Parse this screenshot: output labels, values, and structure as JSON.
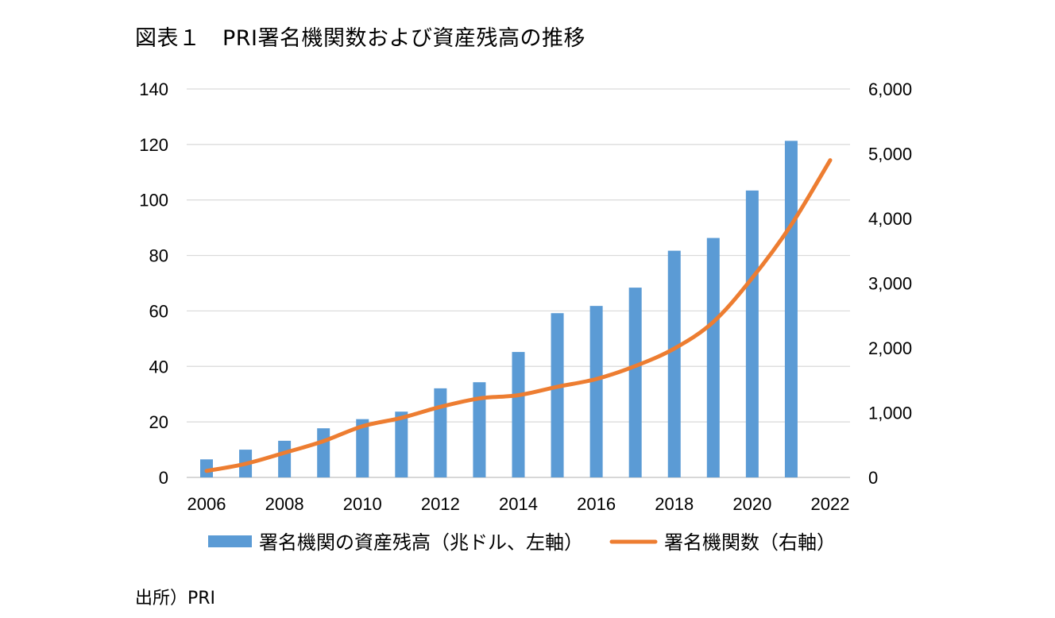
{
  "title": "図表１　PRI署名機関数および資産残高の推移",
  "source": "出所）PRI",
  "chart_data": {
    "type": "bar+line",
    "title": "図表１　PRI署名機関数および資産残高の推移",
    "x_range": [
      2006,
      2022
    ],
    "x_ticks": [
      "2006",
      "2008",
      "2010",
      "2012",
      "2014",
      "2016",
      "2018",
      "2020",
      "2022"
    ],
    "y_left": {
      "range": [
        0,
        140
      ],
      "ticks": [
        "0",
        "20",
        "40",
        "60",
        "80",
        "100",
        "120",
        "140"
      ]
    },
    "y_right": {
      "range": [
        0,
        6000
      ],
      "ticks": [
        "0",
        "1,000",
        "2,000",
        "3,000",
        "4,000",
        "5,000",
        "6,000"
      ]
    },
    "grid": true,
    "legend_position": "bottom",
    "series": [
      {
        "name": "署名機関の資産残高（兆ドル、左軸）",
        "type": "bar",
        "axis": "left",
        "color": "#5b9bd5",
        "points": [
          {
            "x": 2006,
            "y": 6.5
          },
          {
            "x": 2007,
            "y": 10
          },
          {
            "x": 2008,
            "y": 13.2
          },
          {
            "x": 2009,
            "y": 17.7
          },
          {
            "x": 2010,
            "y": 21
          },
          {
            "x": 2011,
            "y": 23.7
          },
          {
            "x": 2012,
            "y": 32.1
          },
          {
            "x": 2013,
            "y": 34.3
          },
          {
            "x": 2014,
            "y": 45.2
          },
          {
            "x": 2015,
            "y": 59.2
          },
          {
            "x": 2016,
            "y": 61.8
          },
          {
            "x": 2017,
            "y": 68.4
          },
          {
            "x": 2018,
            "y": 81.7
          },
          {
            "x": 2019,
            "y": 86.3
          },
          {
            "x": 2020,
            "y": 103.4
          },
          {
            "x": 2021,
            "y": 121.3
          }
        ]
      },
      {
        "name": "署名機関数（右軸）",
        "type": "line",
        "axis": "right",
        "color": "#ed7d31",
        "points": [
          {
            "x": 2006,
            "y": 100
          },
          {
            "x": 2007,
            "y": 210
          },
          {
            "x": 2008,
            "y": 380
          },
          {
            "x": 2009,
            "y": 560
          },
          {
            "x": 2010,
            "y": 790
          },
          {
            "x": 2011,
            "y": 920
          },
          {
            "x": 2012,
            "y": 1090
          },
          {
            "x": 2013,
            "y": 1220
          },
          {
            "x": 2014,
            "y": 1270
          },
          {
            "x": 2015,
            "y": 1400
          },
          {
            "x": 2016,
            "y": 1520
          },
          {
            "x": 2017,
            "y": 1720
          },
          {
            "x": 2018,
            "y": 1990
          },
          {
            "x": 2019,
            "y": 2400
          },
          {
            "x": 2020,
            "y": 3080
          },
          {
            "x": 2021,
            "y": 3900
          },
          {
            "x": 2022,
            "y": 4900
          }
        ]
      }
    ]
  }
}
